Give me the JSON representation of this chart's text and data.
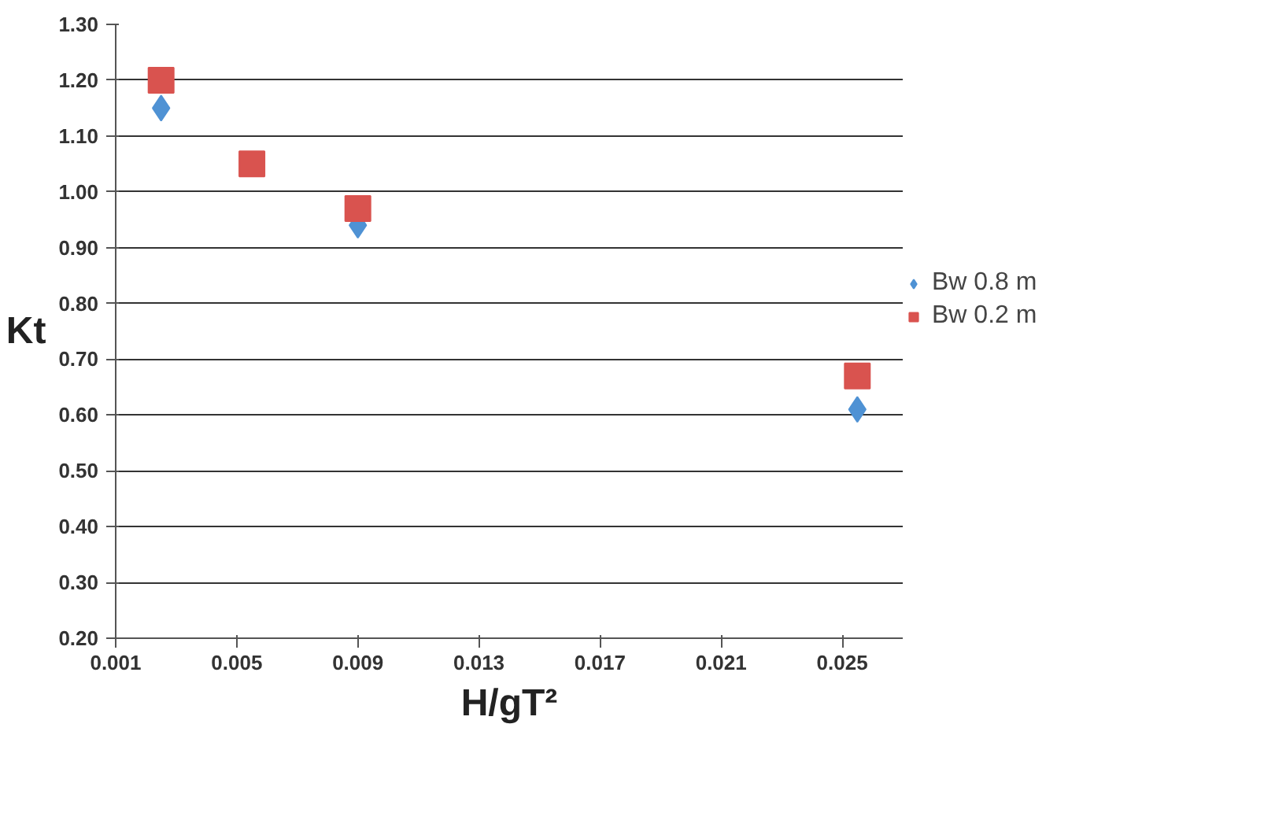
{
  "chart_data": {
    "type": "scatter",
    "xlabel": "H/gT²",
    "ylabel": "Kt",
    "x": [
      0.0025,
      0.0055,
      0.009,
      0.0255
    ],
    "series": [
      {
        "name": "Bw 0.8 m",
        "color": "#4f92d4",
        "marker": "diamond",
        "values": [
          1.15,
          null,
          0.94,
          0.61
        ]
      },
      {
        "name": "Bw 0.2 m",
        "color": "#d9534f",
        "marker": "square",
        "values": [
          1.2,
          1.05,
          0.97,
          0.67
        ]
      }
    ],
    "xlim": [
      0.001,
      0.027
    ],
    "xticks": [
      0.001,
      0.005,
      0.009,
      0.013,
      0.017,
      0.021,
      0.025
    ],
    "ylim": [
      0.2,
      1.3
    ],
    "yticks": [
      {
        "value": 0.2,
        "label": "0.20"
      },
      {
        "value": 0.3,
        "label": "0.30"
      },
      {
        "value": 0.4,
        "label": "0.40"
      },
      {
        "value": 0.5,
        "label": "0.50"
      },
      {
        "value": 0.6,
        "label": "0.60"
      },
      {
        "value": 0.7,
        "label": "0.70"
      },
      {
        "value": 0.8,
        "label": "0.80"
      },
      {
        "value": 0.9,
        "label": "0.90"
      },
      {
        "value": 1.0,
        "label": "1.00"
      },
      {
        "value": 1.1,
        "label": "1.10"
      },
      {
        "value": 1.2,
        "label": "1.20"
      },
      {
        "value": 1.3,
        "label": "1.30"
      }
    ],
    "grid": "y",
    "legend": "right"
  }
}
